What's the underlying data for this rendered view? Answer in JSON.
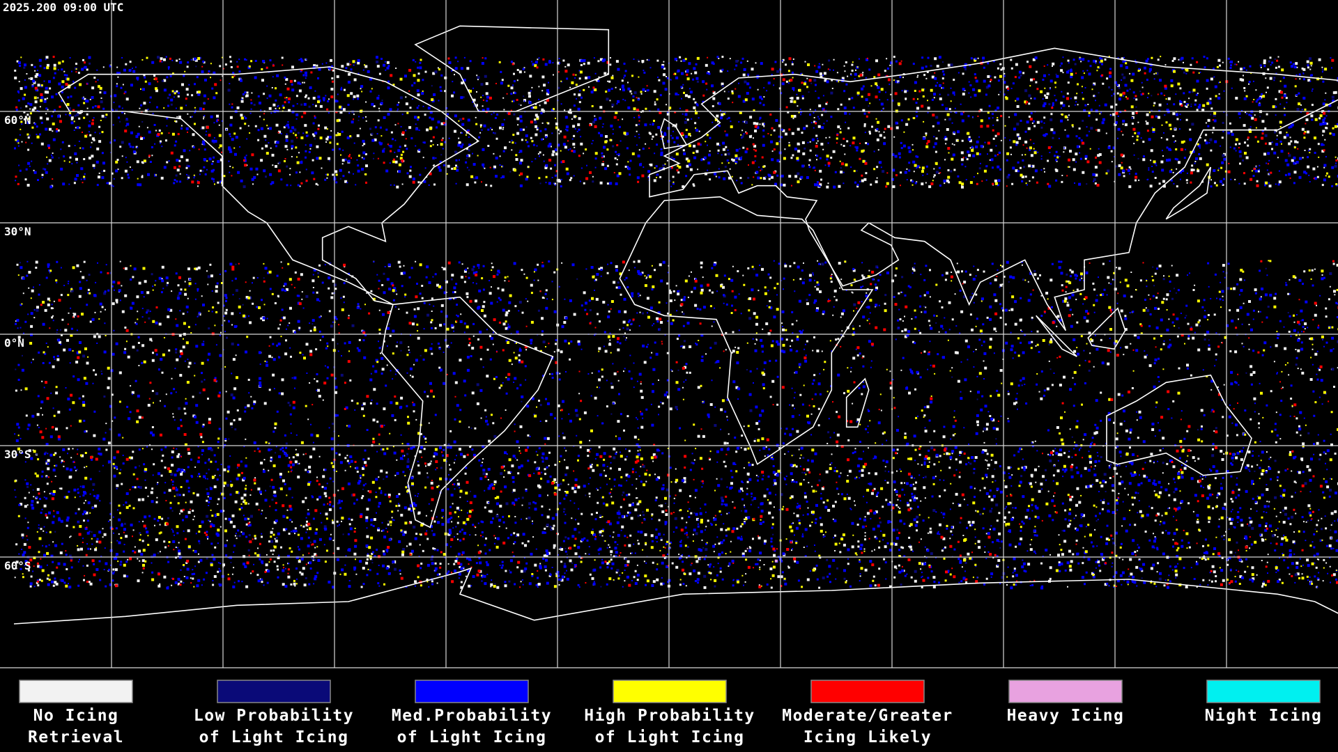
{
  "timestamp": "2025.200 09:00 UTC",
  "latitude_labels": [
    "60°N",
    "30°N",
    "0°N",
    "30°S",
    "60°S"
  ],
  "legend": [
    {
      "color": "#f2f2f2",
      "lines": [
        "No Icing",
        "Retrieval"
      ]
    },
    {
      "color": "#0a0a78",
      "lines": [
        "Low Probability",
        "of Light Icing"
      ]
    },
    {
      "color": "#0000ff",
      "lines": [
        "Med.Probability",
        "of Light Icing"
      ]
    },
    {
      "color": "#ffff00",
      "lines": [
        "High Probability",
        "of Light Icing"
      ]
    },
    {
      "color": "#ff0000",
      "lines": [
        "Moderate/Greater",
        "Icing Likely"
      ]
    },
    {
      "color": "#e8a2e0",
      "lines": [
        "Heavy Icing"
      ]
    },
    {
      "color": "#00f0f0",
      "lines": [
        "Night Icing"
      ]
    }
  ]
}
